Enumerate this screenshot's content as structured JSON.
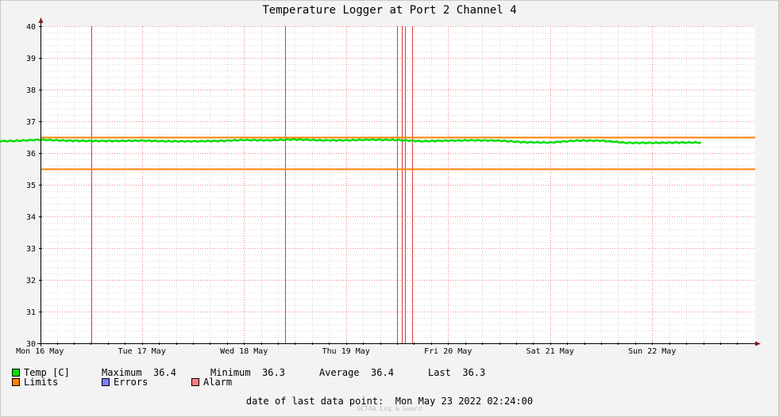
{
  "chart_data": {
    "type": "line",
    "title": "Temperature Logger at Port 2 Channel 4",
    "xlabel": "",
    "ylabel": "",
    "x_ticks": [
      "Mon 16 May",
      "Tue 17 May",
      "Wed 18 May",
      "Thu 19 May",
      "Fri 20 May",
      "Sat 21 May",
      "Sun 22 May"
    ],
    "x_range_days": [
      0,
      7
    ],
    "ylim": [
      30,
      40
    ],
    "y_ticks": [
      30,
      31,
      32,
      33,
      34,
      35,
      36,
      37,
      38,
      39,
      40
    ],
    "grid": true,
    "series": [
      {
        "name": "Temp [C]",
        "color": "#00dd00",
        "points": [
          [
            0.0,
            36.37
          ],
          [
            0.25,
            36.38
          ],
          [
            0.5,
            36.42
          ],
          [
            0.75,
            36.39
          ],
          [
            1.0,
            36.38
          ],
          [
            1.25,
            36.38
          ],
          [
            1.5,
            36.39
          ],
          [
            1.75,
            36.37
          ],
          [
            2.0,
            36.37
          ],
          [
            2.25,
            36.38
          ],
          [
            2.5,
            36.41
          ],
          [
            2.75,
            36.4
          ],
          [
            3.0,
            36.43
          ],
          [
            3.25,
            36.4
          ],
          [
            3.5,
            36.4
          ],
          [
            3.75,
            36.42
          ],
          [
            4.0,
            36.41
          ],
          [
            4.25,
            36.37
          ],
          [
            4.5,
            36.39
          ],
          [
            4.75,
            36.4
          ],
          [
            5.0,
            36.39
          ],
          [
            5.25,
            36.34
          ],
          [
            5.5,
            36.33
          ],
          [
            5.75,
            36.39
          ],
          [
            6.0,
            36.39
          ],
          [
            6.25,
            36.32
          ],
          [
            6.5,
            36.32
          ],
          [
            6.75,
            36.33
          ],
          [
            6.98,
            36.33
          ]
        ]
      }
    ],
    "limits": {
      "name": "Limits",
      "color": "#ff7f00",
      "upper": 36.5,
      "lower": 35.5
    },
    "alarm_events_days": [
      1.0,
      2.9,
      4.0,
      4.05,
      4.08,
      4.15
    ]
  },
  "legend": {
    "temp": {
      "label": "Temp [C]",
      "color": "#00e000"
    },
    "maximum_label": "Maximum",
    "maximum_value": "36.4",
    "minimum_label": "Minimum",
    "minimum_value": "36.3",
    "average_label": "Average",
    "average_value": "36.4",
    "last_label": "Last",
    "last_value": "36.3",
    "limits": {
      "label": "Limits",
      "color": "#ff7f00"
    },
    "errors": {
      "label": "Errors",
      "color": "#7f7fff"
    },
    "alarm": {
      "label": "Alarm",
      "color": "#ff7f7f"
    }
  },
  "footer": {
    "last_point_label": "date of last data point:",
    "last_point_value": "Mon May 23 2022 02:24:00",
    "watermark": "OCTAA Log & Guard"
  }
}
